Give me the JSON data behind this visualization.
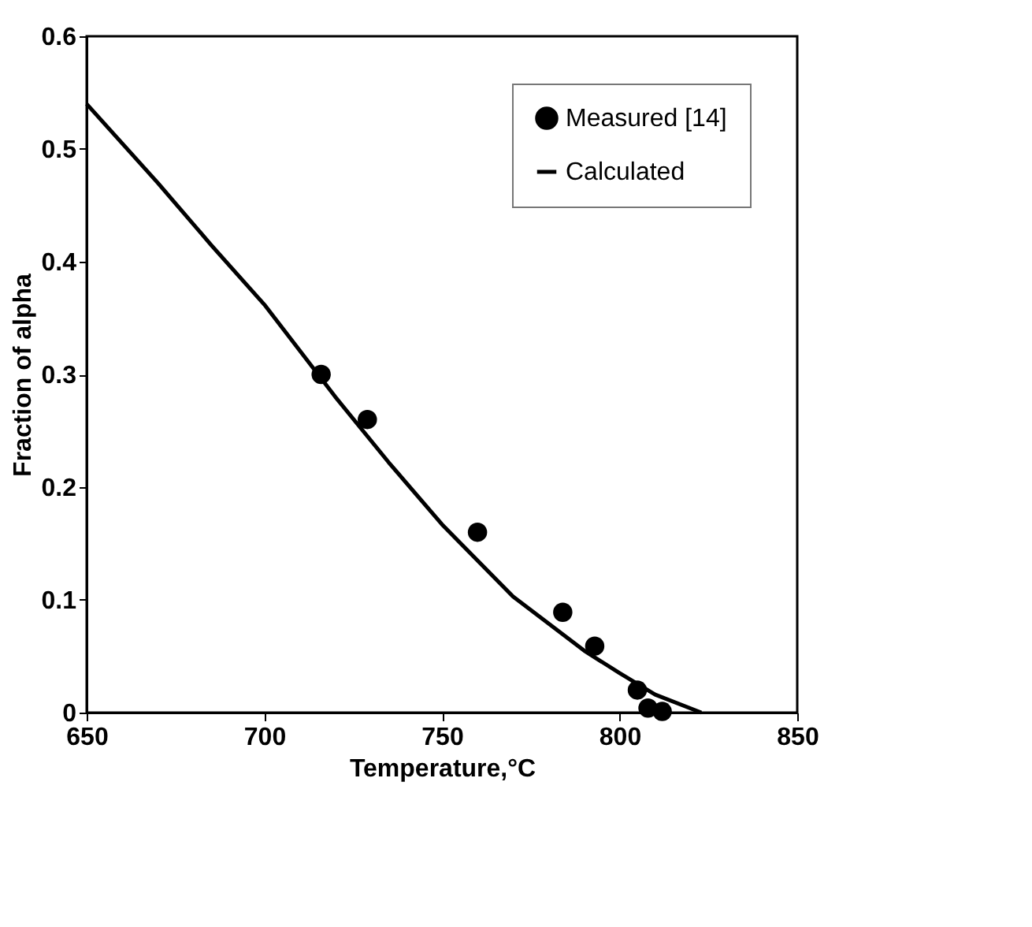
{
  "chart_data": {
    "type": "line",
    "xlabel": "Temperature,°C",
    "ylabel": "Fraction of alpha",
    "xlim": [
      650,
      850
    ],
    "xticks": [
      650,
      700,
      750,
      800,
      850
    ],
    "ylim": [
      0,
      0.6
    ],
    "yticks": [
      {
        "value": 0,
        "label": "0"
      },
      0.1,
      0.2,
      0.3,
      0.4,
      0.5,
      0.6
    ],
    "grid": false,
    "legend": "top right",
    "series": [
      {
        "name": "Measured [14]",
        "type": "scatter",
        "marker": "circle",
        "color": "#000000",
        "x": [
          716,
          729,
          760,
          784,
          793,
          805,
          808,
          812
        ],
        "values": [
          0.3,
          0.26,
          0.16,
          0.089,
          0.059,
          0.02,
          0.004,
          0.001
        ]
      },
      {
        "name": "Calculated",
        "marker": "none",
        "line_style": "solid",
        "color": "#000000",
        "x": [
          650,
          670,
          685,
          700,
          720,
          735,
          750,
          770,
          790,
          800,
          810,
          823
        ],
        "values": [
          0.54,
          0.47,
          0.415,
          0.362,
          0.28,
          0.222,
          0.167,
          0.103,
          0.055,
          0.035,
          0.016,
          0
        ]
      }
    ]
  }
}
